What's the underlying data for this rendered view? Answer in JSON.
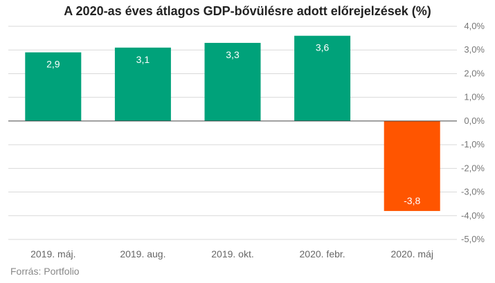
{
  "chart_data": {
    "type": "bar",
    "title": "A 2020-as éves átlagos GDP-bővülésre adott előrejelzések (%)",
    "categories": [
      "2019. máj.",
      "2019. aug.",
      "2019. okt.",
      "2020. febr.",
      "2020. máj"
    ],
    "values": [
      2.9,
      3.1,
      3.3,
      3.6,
      -3.8
    ],
    "value_labels": [
      "2,9",
      "3,1",
      "3,3",
      "3,6",
      "-3,8"
    ],
    "ylim": [
      -5,
      4
    ],
    "yticks": [
      4,
      3,
      2,
      1,
      0,
      -1,
      -2,
      -3,
      -4,
      -5
    ],
    "ytick_labels": [
      "4,0%",
      "3,0%",
      "2,0%",
      "1,0%",
      "0,0%",
      "-1,0%",
      "-2,0%",
      "-3,0%",
      "-4,0%",
      "-5,0%"
    ],
    "y_axis_position": "right",
    "grid": true,
    "colors": {
      "positive": "#00a27a",
      "negative": "#ff5500",
      "grid": "#d9d9d9",
      "zero_line": "#444444"
    }
  },
  "source": "Forrás: Portfolio"
}
